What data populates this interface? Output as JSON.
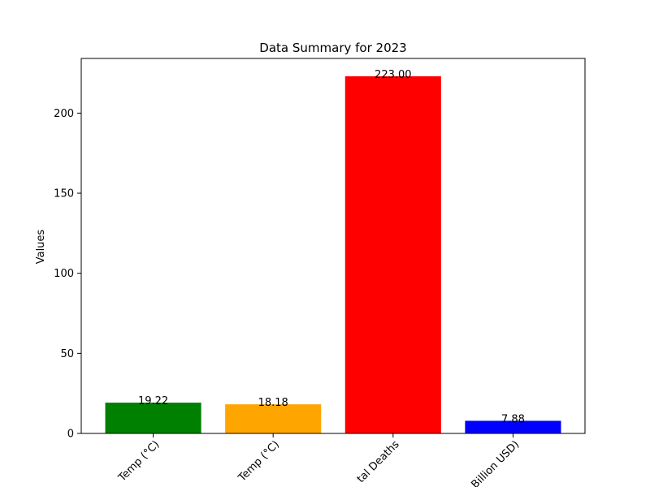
{
  "chart_data": {
    "type": "bar",
    "title": "Data Summary for 2023",
    "xlabel": "",
    "ylabel": "Values",
    "categories": [
      "Average Max Temp (°C)",
      "Average Min Temp (°C)",
      "Total Deaths",
      "Total Damage (Billion USD)"
    ],
    "visible_category_text": [
      "Temp (°C)",
      "Temp (°C)",
      "tal Deaths",
      "Billion USD)"
    ],
    "values": [
      19.22,
      18.18,
      223.0,
      7.88
    ],
    "value_labels": [
      "19.22",
      "18.18",
      "223.00",
      "7.88"
    ],
    "colors": [
      "#008000",
      "#ffa500",
      "#ff0000",
      "#0000ff"
    ],
    "ylim": [
      0,
      234.15
    ],
    "yticks": [
      0,
      50,
      100,
      150,
      200
    ],
    "grid": false,
    "legend": "none"
  }
}
